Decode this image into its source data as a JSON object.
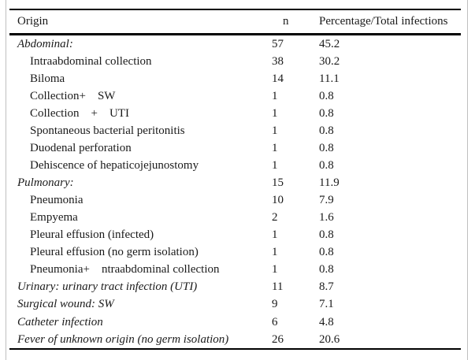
{
  "table": {
    "headers": {
      "origin": "Origin",
      "n": "n",
      "percentage": "Percentage/Total infections"
    },
    "rows": [
      {
        "origin": "Abdominal:",
        "n": "57",
        "pct": "45.2",
        "style": "category"
      },
      {
        "origin": "Intraabdominal collection",
        "n": "38",
        "pct": "30.2",
        "style": "sub"
      },
      {
        "origin": "Biloma",
        "n": "14",
        "pct": "11.1",
        "style": "sub"
      },
      {
        "origin": "Collection+    SW",
        "n": "1",
        "pct": "0.8",
        "style": "sub"
      },
      {
        "origin": "Collection    +    UTI",
        "n": "1",
        "pct": "0.8",
        "style": "sub"
      },
      {
        "origin": "Spontaneous bacterial peritonitis",
        "n": "1",
        "pct": "0.8",
        "style": "sub"
      },
      {
        "origin": "Duodenal perforation",
        "n": "1",
        "pct": "0.8",
        "style": "sub"
      },
      {
        "origin": "Dehiscence of hepaticojejunostomy",
        "n": "1",
        "pct": "0.8",
        "style": "sub"
      },
      {
        "origin": "Pulmonary:",
        "n": "15",
        "pct": "11.9",
        "style": "category"
      },
      {
        "origin": "Pneumonia",
        "n": "10",
        "pct": "7.9",
        "style": "sub"
      },
      {
        "origin": "Empyema",
        "n": "2",
        "pct": "1.6",
        "style": "sub"
      },
      {
        "origin": "Pleural effusion (infected)",
        "n": "1",
        "pct": "0.8",
        "style": "sub"
      },
      {
        "origin": "Pleural effusion (no germ isolation)",
        "n": "1",
        "pct": "0.8",
        "style": "sub"
      },
      {
        "origin": "Pneumonia+    ntraabdominal collection",
        "n": "1",
        "pct": "0.8",
        "style": "sub"
      },
      {
        "origin": "Urinary: urinary tract infection (UTI)",
        "n": "11",
        "pct": "8.7",
        "style": "category"
      },
      {
        "origin": "Surgical wound: SW",
        "n": "9",
        "pct": "7.1",
        "style": "category"
      },
      {
        "origin": "Catheter infection",
        "n": "6",
        "pct": "4.8",
        "style": "category"
      },
      {
        "origin": "Fever of unknown origin (no germ isolation)",
        "n": "26",
        "pct": "20.6",
        "style": "category"
      }
    ],
    "colors": {
      "text": "#1a1a1a",
      "rule": "#000000",
      "frame": "#bfbfbf",
      "background": "#ffffff"
    }
  }
}
